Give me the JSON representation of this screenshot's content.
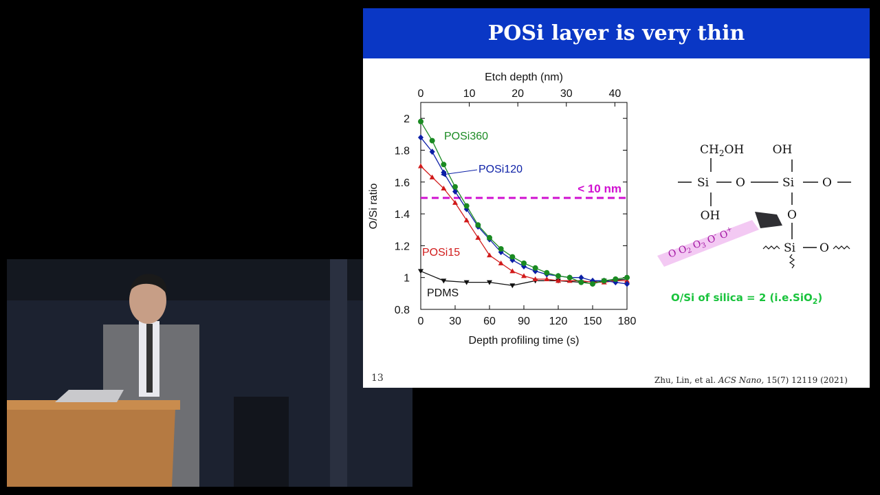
{
  "slide": {
    "title": "POSi layer is very thin",
    "page_number": "13",
    "citation_authors": "Zhu, Lin, et al.",
    "citation_journal": "ACS Nano,",
    "citation_details": "15(7) 12119 (2021)"
  },
  "chemistry": {
    "ch2oh": "CH2OH",
    "oh_top": "OH",
    "oh_bottom": "OH",
    "si": "Si",
    "o": "O",
    "ozone_species": "O O2 O3 O- O+",
    "silica_note": "O/Si of silica = 2 (i.e.SiO2)"
  },
  "colors": {
    "header": "#0a37c5",
    "posi360": "#1a8a22",
    "posi120": "#0b1fa6",
    "posi15": "#d11a1a",
    "pdms": "#111111",
    "threshold": "#d010d0",
    "silica_text": "#19c33c"
  },
  "chart_data": {
    "type": "line",
    "xlabel": "Depth profiling time (s)",
    "x2label": "Etch depth (nm)",
    "ylabel": "O/Si ratio",
    "xlim": [
      0,
      180
    ],
    "x2lim": [
      0,
      42.5
    ],
    "ylim": [
      0.8,
      2.1
    ],
    "xticks": [
      0,
      30,
      60,
      90,
      120,
      150,
      180
    ],
    "x2ticks": [
      0,
      10,
      20,
      30,
      40
    ],
    "yticks": [
      0.8,
      1,
      1.2,
      1.4,
      1.6,
      1.8,
      2
    ],
    "threshold": {
      "y": 1.5,
      "label": "< 10 nm"
    },
    "series": [
      {
        "name": "POSi360",
        "marker": "circle",
        "x": [
          0,
          10,
          20,
          30,
          40,
          50,
          60,
          70,
          80,
          90,
          100,
          110,
          120,
          130,
          140,
          150,
          160,
          170,
          180
        ],
        "y": [
          1.98,
          1.86,
          1.71,
          1.57,
          1.45,
          1.33,
          1.25,
          1.18,
          1.13,
          1.09,
          1.06,
          1.03,
          1.01,
          1.0,
          0.97,
          0.96,
          0.98,
          0.99,
          1.0
        ]
      },
      {
        "name": "POSi120",
        "marker": "diamond",
        "x": [
          0,
          10,
          20,
          30,
          40,
          50,
          60,
          70,
          80,
          90,
          100,
          110,
          120,
          130,
          140,
          150,
          160,
          170,
          180
        ],
        "y": [
          1.88,
          1.79,
          1.66,
          1.54,
          1.43,
          1.32,
          1.24,
          1.16,
          1.11,
          1.07,
          1.04,
          1.02,
          1.01,
          1.0,
          1.0,
          0.98,
          0.98,
          0.97,
          0.96
        ]
      },
      {
        "name": "POSi15",
        "marker": "triangle-up",
        "x": [
          0,
          10,
          20,
          30,
          40,
          50,
          60,
          70,
          80,
          90,
          100,
          110,
          120,
          130,
          140,
          150,
          160,
          170,
          180
        ],
        "y": [
          1.7,
          1.63,
          1.56,
          1.47,
          1.36,
          1.25,
          1.14,
          1.09,
          1.04,
          1.01,
          0.99,
          0.99,
          0.98,
          0.98,
          0.98,
          0.97,
          0.97,
          0.98,
          0.98
        ]
      },
      {
        "name": "PDMS",
        "marker": "triangle-down",
        "x": [
          0,
          20,
          40,
          60,
          80,
          100,
          120,
          140,
          160,
          180
        ],
        "y": [
          1.04,
          0.98,
          0.97,
          0.97,
          0.95,
          0.98,
          0.98,
          0.97,
          0.98,
          0.99
        ]
      }
    ]
  }
}
